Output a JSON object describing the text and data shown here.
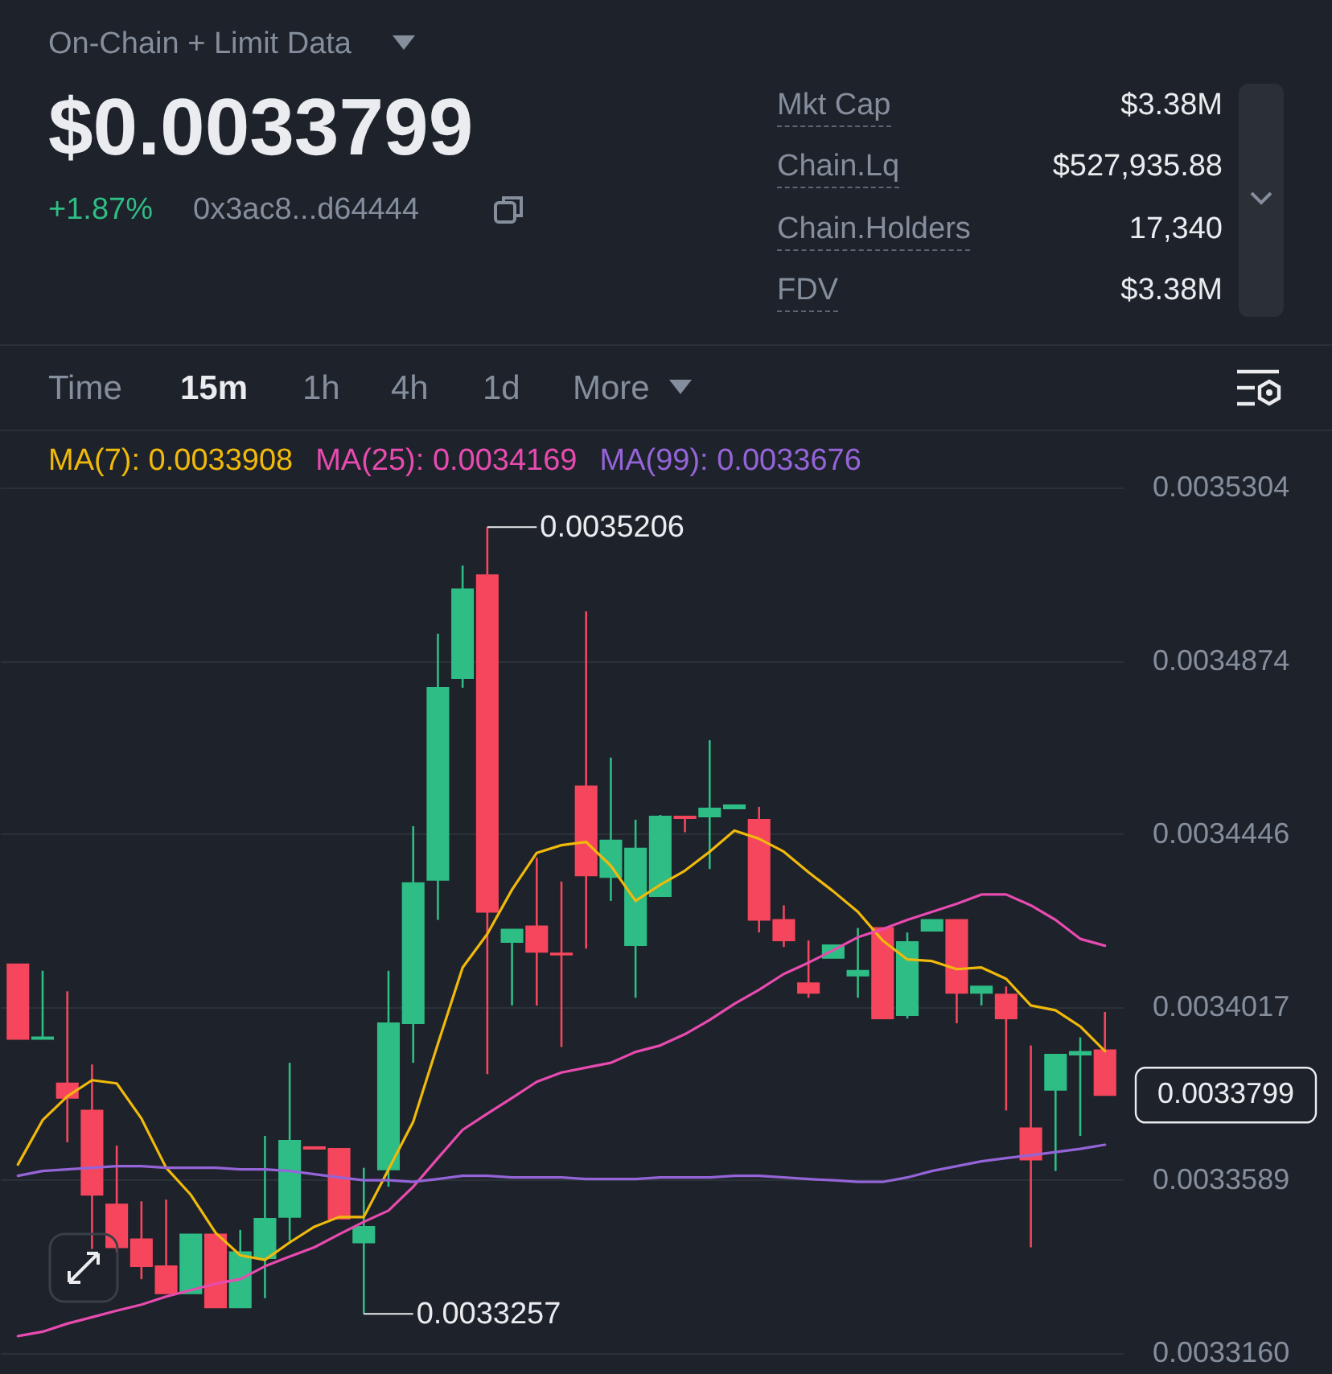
{
  "chart_data": {
    "type": "candlestick",
    "annotations": [
      "On-Chain + Limit Data",
      "$0.0033799",
      "+1.87%",
      "0x3ac8...d64444",
      "Mkt Cap",
      "$3.38M",
      "Chain.Lq",
      "$527,935.88",
      "Chain.Holders",
      "17,340",
      "FDV",
      "$3.38M",
      "Time",
      "15m",
      "1h",
      "4h",
      "1d",
      "More",
      "0.0035206",
      "0.0033257",
      "0.0033799"
    ],
    "categories": [
      null,
      null,
      null,
      null,
      null,
      null,
      null,
      null,
      null,
      null,
      null,
      null,
      null,
      null,
      null,
      null,
      null,
      null,
      null,
      null,
      null,
      null,
      null,
      null,
      null,
      null,
      null,
      null,
      null,
      null,
      null,
      null,
      null,
      null,
      null,
      null,
      null,
      null,
      null,
      null,
      null,
      null,
      null,
      null,
      null
    ],
    "ohlc": [
      [
        0.0034123,
        0.0034123,
        0.0033938,
        0.0033938
      ],
      [
        0.0033938,
        0.0034107,
        0.0033938,
        0.0033942
      ],
      [
        0.0033828,
        0.0034056,
        0.0033682,
        0.0033792
      ],
      [
        0.0033761,
        0.0033875,
        0.0033418,
        0.0033552
      ],
      [
        0.0033528,
        0.0033674,
        0.003341,
        0.0033422
      ],
      [
        0.0033442,
        0.0033536,
        0.0033343,
        0.0033375
      ],
      [
        0.0033375,
        0.003354,
        0.0033308,
        0.0033308
      ],
      [
        0.0033308,
        0.0033454,
        0.0033308,
        0.0033454
      ],
      [
        0.0033454,
        0.0033454,
        0.0033273,
        0.0033273
      ],
      [
        0.0033273,
        0.0033465,
        0.0033273,
        0.003341
      ],
      [
        0.0033395,
        0.0033698,
        0.0033296,
        0.0033493
      ],
      [
        0.0033497,
        0.0033879,
        0.0033438,
        0.0033686
      ],
      [
        0.003367,
        0.003367,
        0.0033666,
        0.0033666
      ],
      [
        0.0033666,
        0.0033666,
        0.0033493,
        0.0033493
      ],
      [
        0.0033434,
        0.0033619,
        0.0033257,
        0.0033473
      ],
      [
        0.0033615,
        0.0034107,
        0.0033572,
        0.0033977
      ],
      [
        0.0033977,
        0.0034465,
        0.0033879,
        0.0034324
      ],
      [
        0.0034332,
        0.0034942,
        0.0034233,
        0.0034808
      ],
      [
        0.0034832,
        0.0035111,
        0.0034808,
        0.0035052
      ],
      [
        0.0035087,
        0.0035206,
        0.0033851,
        0.0034253
      ],
      [
        0.0034178,
        0.0034209,
        0.0034021,
        0.0034209
      ],
      [
        0.0034217,
        0.0034387,
        0.0034021,
        0.0034154
      ],
      [
        0.003415,
        0.0034328,
        0.0033918,
        0.0034147
      ],
      [
        0.0034564,
        0.0034997,
        0.0034162,
        0.0034343
      ],
      [
        0.0034339,
        0.0034635,
        0.003428,
        0.003443
      ],
      [
        0.003417,
        0.0034481,
        0.003404,
        0.003441
      ],
      [
        0.0034292,
        0.0034493,
        0.0034292,
        0.0034489
      ],
      [
        0.0034489,
        0.0034489,
        0.003445,
        0.0034485
      ],
      [
        0.0034489,
        0.0034678,
        0.0034359,
        0.0034509
      ],
      [
        0.0034509,
        0.0034517,
        0.0034509,
        0.0034517
      ],
      [
        0.0034481,
        0.0034513,
        0.0034202,
        0.0034233
      ],
      [
        0.0034233,
        0.0034269,
        0.0034166,
        0.0034182
      ],
      [
        0.0034076,
        0.0034182,
        0.003404,
        0.0034052
      ],
      [
        0.0034139,
        0.003417,
        0.0034139,
        0.003417
      ],
      [
        0.0034095,
        0.0034213,
        0.003404,
        0.0034107
      ],
      [
        0.0034213,
        0.0034213,
        0.0033989,
        0.0033989
      ],
      [
        0.0033997,
        0.0034202,
        0.0033989,
        0.0034178
      ],
      [
        0.0034206,
        0.0034233,
        0.0034206,
        0.0034233
      ],
      [
        0.0034233,
        0.0034233,
        0.0033977,
        0.0034052
      ],
      [
        0.0034052,
        0.0034068,
        0.0034021,
        0.0034068
      ],
      [
        0.0034048,
        0.0034068,
        0.0033761,
        0.0033989
      ],
      [
        0.0033717,
        0.0033922,
        0.0033422,
        0.0033639
      ],
      [
        0.0033812,
        0.0033899,
        0.0033611,
        0.0033899
      ],
      [
        0.0033899,
        0.0033942,
        0.0033698,
        0.0033906
      ],
      [
        0.003391,
        0.0034005,
        0.0033799,
        0.0033799
      ]
    ],
    "colors": [
      "#f6465d",
      "#2ebd85",
      "#f6465d",
      "#f6465d",
      "#f6465d",
      "#f6465d",
      "#f6465d",
      "#2ebd85",
      "#f6465d",
      "#2ebd85",
      "#2ebd85",
      "#2ebd85",
      "#f6465d",
      "#f6465d",
      "#2ebd85",
      "#2ebd85",
      "#2ebd85",
      "#2ebd85",
      "#2ebd85",
      "#f6465d",
      "#2ebd85",
      "#f6465d",
      "#f6465d",
      "#f6465d",
      "#2ebd85",
      "#2ebd85",
      "#2ebd85",
      "#f6465d",
      "#2ebd85",
      "#2ebd85",
      "#f6465d",
      "#f6465d",
      "#f6465d",
      "#2ebd85",
      "#2ebd85",
      "#f6465d",
      "#2ebd85",
      "#2ebd85",
      "#f6465d",
      "#2ebd85",
      "#f6465d",
      "#f6465d",
      "#2ebd85",
      "#2ebd85",
      "#f6465d"
    ],
    "series": [
      {
        "name": "MA(7): 0.0033908",
        "type": "line",
        "color": "#f0b90b",
        "values": [
          0.0033627,
          0.0033737,
          0.0033796,
          0.0033836,
          0.0033828,
          0.0033741,
          0.0033619,
          0.0033552,
          0.0033458,
          0.0033402,
          0.0033391,
          0.0033434,
          0.0033473,
          0.0033497,
          0.0033497,
          0.0033615,
          0.0033733,
          0.0033926,
          0.0034115,
          0.0034198,
          0.0034308,
          0.0034399,
          0.0034418,
          0.0034426,
          0.0034367,
          0.003428,
          0.003432,
          0.0034355,
          0.0034402,
          0.0034454,
          0.0034434,
          0.0034402,
          0.0034351,
          0.0034304,
          0.0034253,
          0.0034182,
          0.0034135,
          0.0034131,
          0.0034111,
          0.0034115,
          0.0034087,
          0.0034021,
          0.0034009,
          0.0033969,
          0.0033908
        ]
      },
      {
        "name": "MA(25): 0.0034169",
        "type": "line",
        "color": "#e84bb0",
        "values": [
          0.0033202,
          0.0033213,
          0.0033233,
          0.0033249,
          0.0033265,
          0.003328,
          0.00333,
          0.0033316,
          0.0033332,
          0.0033343,
          0.0033375,
          0.0033399,
          0.0033422,
          0.0033454,
          0.0033485,
          0.0033513,
          0.0033572,
          0.0033643,
          0.0033713,
          0.0033753,
          0.0033792,
          0.0033832,
          0.0033855,
          0.0033867,
          0.0033879,
          0.0033906,
          0.0033922,
          0.003395,
          0.0033985,
          0.0034025,
          0.003406,
          0.0034099,
          0.0034127,
          0.0034158,
          0.003419,
          0.003421,
          0.0034233,
          0.0034253,
          0.0034273,
          0.0034296,
          0.0034296,
          0.0034269,
          0.0034233,
          0.0034186,
          0.0034169
        ]
      },
      {
        "name": "MA(99): 0.0033676",
        "type": "line",
        "color": "#9464d8",
        "values": [
          0.0033599,
          0.0033611,
          0.0033615,
          0.0033619,
          0.0033623,
          0.0033623,
          0.0033619,
          0.0033619,
          0.0033619,
          0.0033615,
          0.0033615,
          0.0033611,
          0.0033603,
          0.0033595,
          0.0033588,
          0.0033588,
          0.0033584,
          0.0033591,
          0.0033599,
          0.0033599,
          0.0033595,
          0.0033595,
          0.0033595,
          0.0033591,
          0.0033591,
          0.0033591,
          0.0033595,
          0.0033595,
          0.0033595,
          0.0033599,
          0.0033599,
          0.0033595,
          0.0033591,
          0.0033588,
          0.0033584,
          0.0033584,
          0.0033595,
          0.0033611,
          0.0033623,
          0.0033635,
          0.0033643,
          0.003365,
          0.0033658,
          0.0033666,
          0.0033676
        ]
      }
    ],
    "ylim": [
      0.003316,
      0.0035304
    ],
    "yticks": [
      0.0035304,
      0.0034874,
      0.0034446,
      0.0034017,
      0.0033589,
      {
        "value": 0.003316,
        "label": "0.0033160"
      }
    ],
    "grid": "y",
    "legend": "top left",
    "tick_labels": "y"
  }
}
